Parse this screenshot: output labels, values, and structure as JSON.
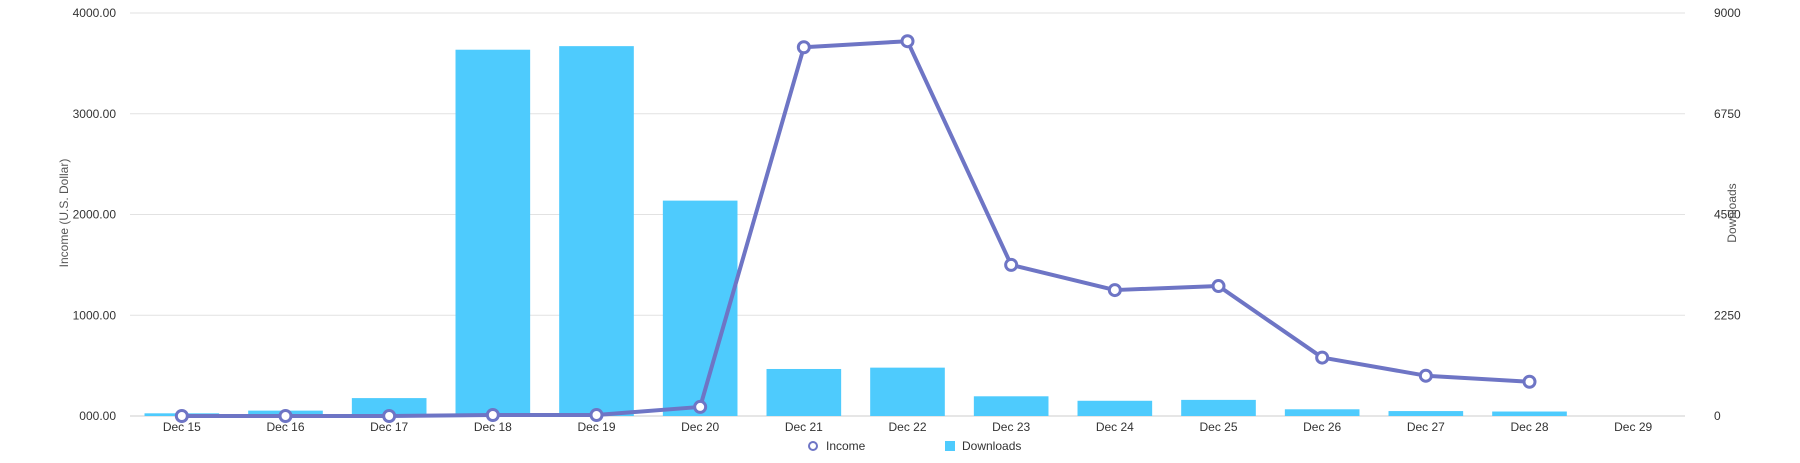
{
  "chart_data": {
    "type": "bar",
    "categories": [
      "Dec 15",
      "Dec 16",
      "Dec 17",
      "Dec 18",
      "Dec 19",
      "Dec 20",
      "Dec 21",
      "Dec 22",
      "Dec 23",
      "Dec 24",
      "Dec 25",
      "Dec 26",
      "Dec 27",
      "Dec 28",
      "Dec 29"
    ],
    "y_left": {
      "label": "Income (U.S. Dollar)",
      "ticks": [
        "000.00",
        "1000.00",
        "2000.00",
        "3000.00",
        "4000.00"
      ],
      "range": [
        0,
        4000
      ]
    },
    "y_right": {
      "label": "Downloads",
      "ticks": [
        "0",
        "2250",
        "4500",
        "6750",
        "9000"
      ],
      "range": [
        0,
        9000
      ]
    },
    "series": [
      {
        "name": "Downloads",
        "type": "bar",
        "axis": "right",
        "values": [
          60,
          120,
          400,
          8180,
          8260,
          4810,
          1050,
          1080,
          440,
          340,
          360,
          150,
          110,
          100,
          null
        ]
      },
      {
        "name": "Income",
        "type": "line",
        "axis": "left",
        "values": [
          0,
          0,
          0,
          10,
          10,
          90,
          3660,
          3720,
          1500,
          1250,
          1290,
          580,
          400,
          340,
          null
        ]
      }
    ],
    "colors": {
      "bars": "#4ecbfd",
      "line": "#6e75c5",
      "grid": "#e2e2e2",
      "axis": "#cccccc"
    },
    "grid": true,
    "legend_position": "bottom-center"
  }
}
